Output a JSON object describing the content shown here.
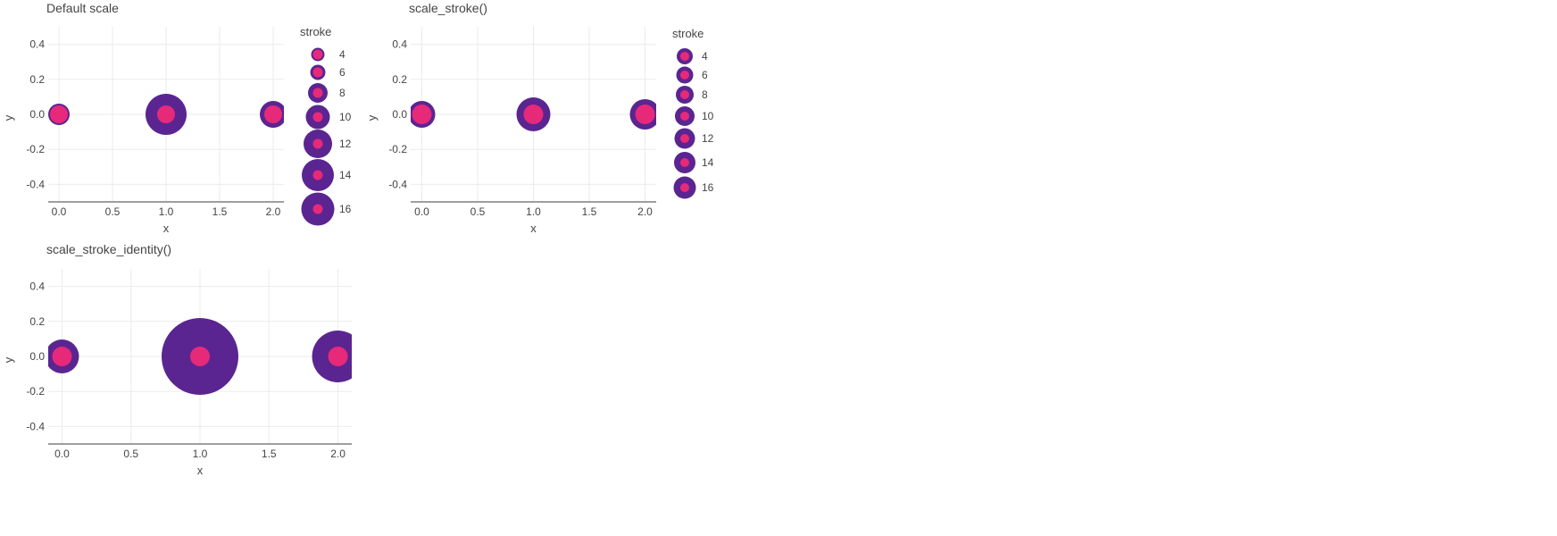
{
  "colors": {
    "fill": "#E7297A",
    "stroke": "#5A2591",
    "grid": "#EBEBEB",
    "axis": "#7F7F7F",
    "text": "#444444"
  },
  "chart_data": [
    {
      "type": "scatter",
      "title": "Default scale",
      "xlabel": "x",
      "ylabel": "y",
      "xlim": [
        -0.1,
        2.1
      ],
      "ylim": [
        -0.5,
        0.5
      ],
      "x_ticks": [
        0.0,
        0.5,
        1.0,
        1.5,
        2.0
      ],
      "x_tick_labels": [
        "0.0",
        "0.5",
        "1.0",
        "1.5",
        "2.0"
      ],
      "y_ticks": [
        0.4,
        0.2,
        0.0,
        -0.2,
        -0.4
      ],
      "y_tick_labels": [
        "0.4",
        "0.2",
        "0.0",
        "-0.2",
        "-0.4"
      ],
      "grid": true,
      "legend_placement": "right",
      "points": [
        {
          "x": 0,
          "y": 0,
          "stroke": 4
        },
        {
          "x": 1,
          "y": 0,
          "stroke": 16
        },
        {
          "x": 2,
          "y": 0,
          "stroke": 8
        }
      ],
      "legend": {
        "title": "stroke",
        "entries": [
          {
            "label": "4",
            "value": 4
          },
          {
            "label": "6",
            "value": 6
          },
          {
            "label": "8",
            "value": 8
          },
          {
            "label": "10",
            "value": 10
          },
          {
            "label": "12",
            "value": 12
          },
          {
            "label": "14",
            "value": 14
          },
          {
            "label": "16",
            "value": 16
          }
        ]
      }
    },
    {
      "type": "scatter",
      "title": "scale_stroke()",
      "xlabel": "x",
      "ylabel": "y",
      "xlim": [
        -0.1,
        2.1
      ],
      "ylim": [
        -0.5,
        0.5
      ],
      "x_ticks": [
        0.0,
        0.5,
        1.0,
        1.5,
        2.0
      ],
      "x_tick_labels": [
        "0.0",
        "0.5",
        "1.0",
        "1.5",
        "2.0"
      ],
      "y_ticks": [
        0.4,
        0.2,
        0.0,
        -0.2,
        -0.4
      ],
      "y_tick_labels": [
        "0.4",
        "0.2",
        "0.0",
        "-0.2",
        "-0.4"
      ],
      "grid": true,
      "legend_placement": "right",
      "points": [
        {
          "x": 0,
          "y": 0,
          "stroke": 4
        },
        {
          "x": 1,
          "y": 0,
          "stroke": 16
        },
        {
          "x": 2,
          "y": 0,
          "stroke": 8
        }
      ],
      "legend": {
        "title": "stroke",
        "entries": [
          {
            "label": "4",
            "value": 4
          },
          {
            "label": "6",
            "value": 6
          },
          {
            "label": "8",
            "value": 8
          },
          {
            "label": "10",
            "value": 10
          },
          {
            "label": "12",
            "value": 12
          },
          {
            "label": "14",
            "value": 14
          },
          {
            "label": "16",
            "value": 16
          }
        ]
      }
    },
    {
      "type": "scatter",
      "title": "scale_stroke_identity()",
      "xlabel": "x",
      "ylabel": "y",
      "xlim": [
        -0.1,
        2.1
      ],
      "ylim": [
        -0.5,
        0.5
      ],
      "x_ticks": [
        0.0,
        0.5,
        1.0,
        1.5,
        2.0
      ],
      "x_tick_labels": [
        "0.0",
        "0.5",
        "1.0",
        "1.5",
        "2.0"
      ],
      "y_ticks": [
        0.4,
        0.2,
        0.0,
        -0.2,
        -0.4
      ],
      "y_tick_labels": [
        "0.4",
        "0.2",
        "0.0",
        "-0.2",
        "-0.4"
      ],
      "grid": true,
      "legend_placement": "none",
      "points": [
        {
          "x": 0,
          "y": 0,
          "stroke": 4
        },
        {
          "x": 1,
          "y": 0,
          "stroke": 16
        },
        {
          "x": 2,
          "y": 0,
          "stroke": 8
        }
      ]
    }
  ]
}
